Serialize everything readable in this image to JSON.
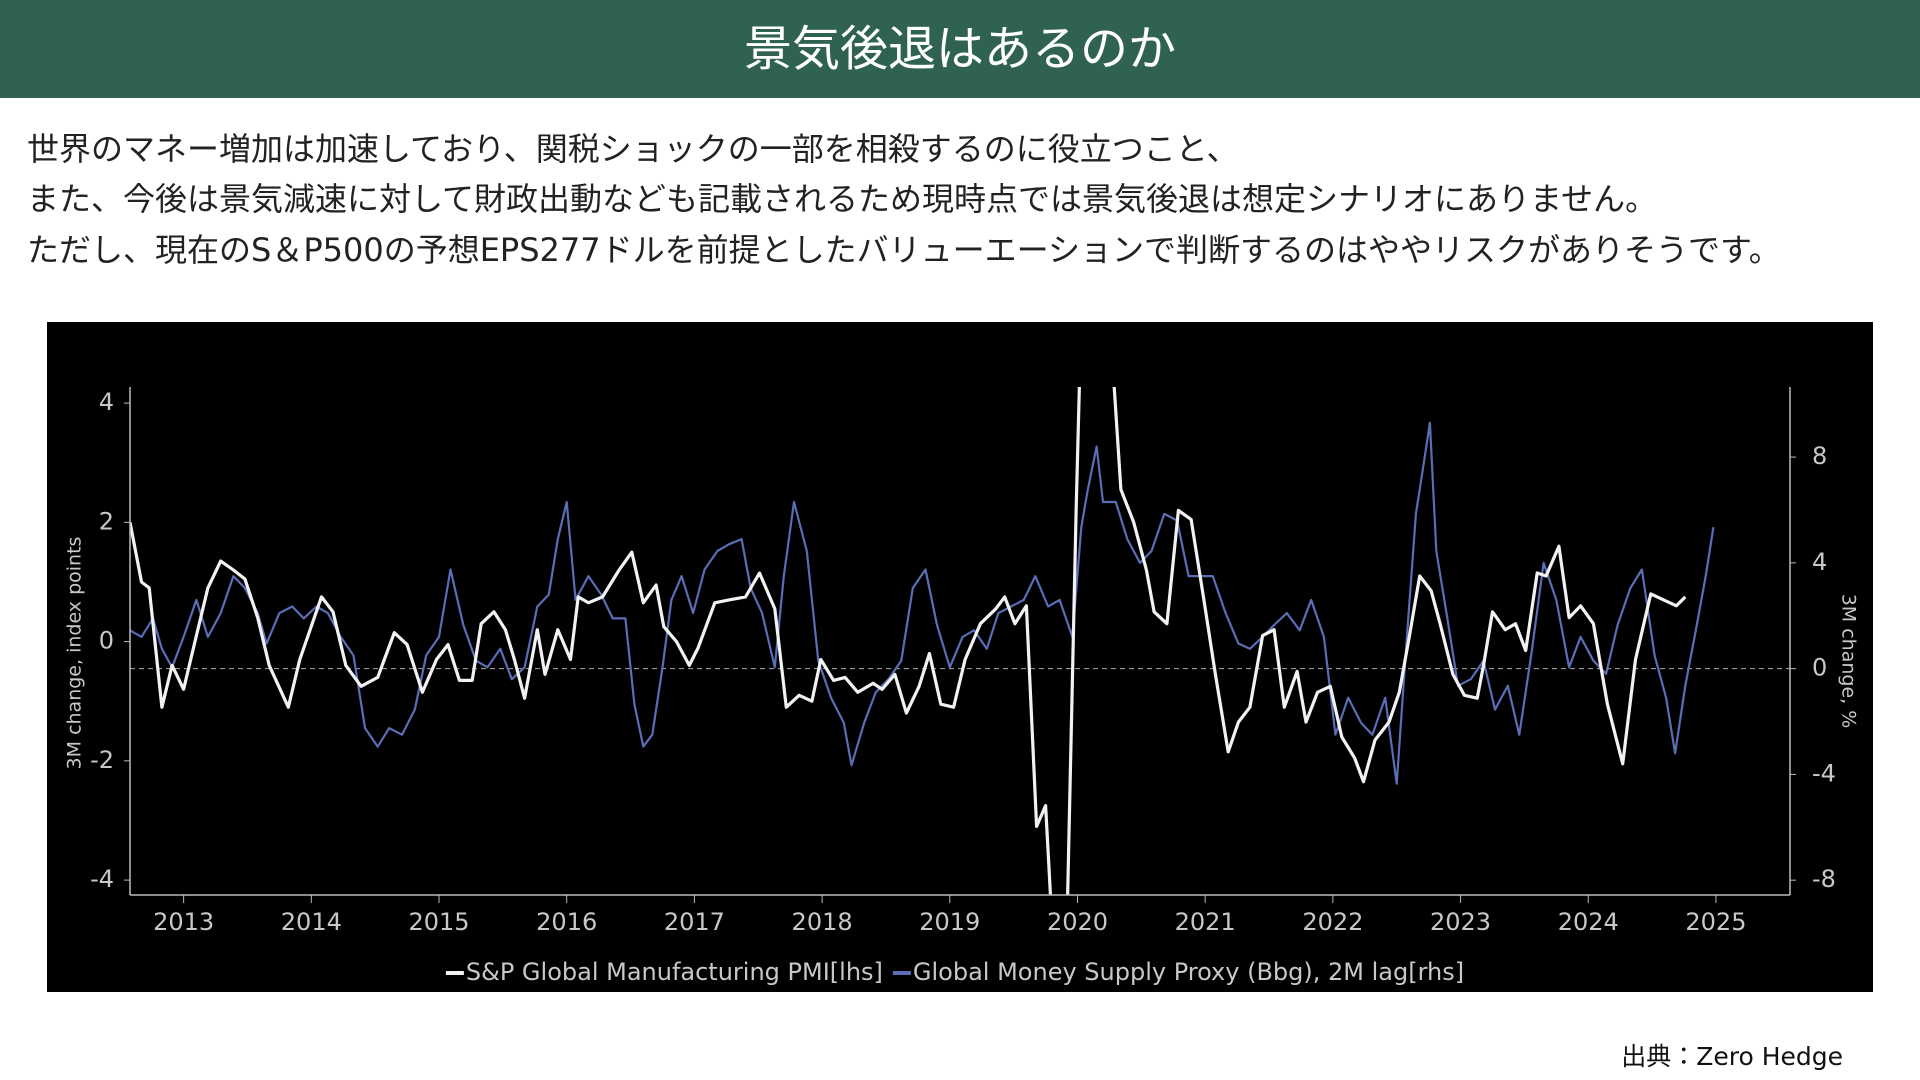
{
  "header": {
    "title": "景気後退はあるのか"
  },
  "body": {
    "lines": [
      "世界のマネー増加は加速しており、関税ショックの一部を相殺するのに役立つこと、",
      "また、今後は景気減速に対して財政出動なども記載されるため現時点では景気後退は想定シナリオにありません。",
      "ただし、現在のS＆P500の予想EPS277ドルを前提としたバリューエーションで判断するのはややリスクがありそうです。"
    ]
  },
  "source": "出典：Zero Hedge",
  "chart_data": {
    "type": "line",
    "ylabel": "3M change, index points",
    "y2label": "3M change, %",
    "xlim": [
      2013.08,
      2026.08
    ],
    "xticks": [
      {
        "value": 2013.5,
        "label": "2013"
      },
      {
        "value": 2014.5,
        "label": "2014"
      },
      {
        "value": 2015.5,
        "label": "2015"
      },
      {
        "value": 2016.5,
        "label": "2016"
      },
      {
        "value": 2017.5,
        "label": "2017"
      },
      {
        "value": 2018.5,
        "label": "2018"
      },
      {
        "value": 2019.5,
        "label": "2019"
      },
      {
        "value": 2020.5,
        "label": "2020"
      },
      {
        "value": 2021.5,
        "label": "2021"
      },
      {
        "value": 2022.5,
        "label": "2022"
      },
      {
        "value": 2023.5,
        "label": "2023"
      },
      {
        "value": 2024.5,
        "label": "2024"
      },
      {
        "value": 2025.5,
        "label": "2025"
      }
    ],
    "ylim": [
      -4.25,
      4.27
    ],
    "yticks": [
      -4,
      -2,
      0,
      2,
      4
    ],
    "y2lim": [
      -8.56,
      10.65
    ],
    "y2ticks": [
      -8,
      -4,
      0,
      4,
      8
    ],
    "zeroline_axis": "y2",
    "legend": "bottom",
    "background": "#000000",
    "series": [
      {
        "name": "S&P Global Manufacturing PMI[lhs]",
        "color": "#f2f2f2",
        "x": [
          2013.08,
          2013.17,
          2013.23,
          2013.33,
          2013.41,
          2013.5,
          2013.6,
          2013.69,
          2013.79,
          2013.89,
          2013.98,
          2014.08,
          2014.17,
          2014.32,
          2014.41,
          2014.58,
          2014.67,
          2014.77,
          2014.89,
          2015.02,
          2015.15,
          2015.25,
          2015.37,
          2015.48,
          2015.57,
          2015.66,
          2015.76,
          2015.83,
          2015.93,
          2016.02,
          2016.09,
          2016.17,
          2016.27,
          2016.33,
          2016.43,
          2016.53,
          2016.59,
          2016.67,
          2016.78,
          2016.91,
          2017.01,
          2017.1,
          2017.2,
          2017.26,
          2017.36,
          2017.46,
          2017.53,
          2017.66,
          2017.77,
          2017.9,
          2018.01,
          2018.13,
          2018.22,
          2018.32,
          2018.42,
          2018.49,
          2018.59,
          2018.68,
          2018.78,
          2018.9,
          2018.97,
          2019.07,
          2019.16,
          2019.26,
          2019.34,
          2019.43,
          2019.53,
          2019.62,
          2019.74,
          2019.86,
          2019.93,
          2020.01,
          2020.1,
          2020.18,
          2020.25,
          2020.32,
          2020.41,
          2020.49,
          2020.53,
          2020.75,
          2020.84,
          2020.94,
          2021.04,
          2021.1,
          2021.2,
          2021.29,
          2021.39,
          2021.49,
          2021.58,
          2021.68,
          2021.76,
          2021.85,
          2021.95,
          2022.04,
          2022.12,
          2022.22,
          2022.29,
          2022.38,
          2022.48,
          2022.57,
          2022.67,
          2022.74,
          2022.83,
          2022.94,
          2023.02,
          2023.1,
          2023.18,
          2023.27,
          2023.34,
          2023.44,
          2023.53,
          2023.63,
          2023.68,
          2023.75,
          2023.85,
          2023.93,
          2024.01,
          2024.1,
          2024.17,
          2024.27,
          2024.35,
          2024.44,
          2024.54,
          2024.65,
          2024.77,
          2024.87,
          2024.99,
          2025.09,
          2025.19,
          2025.26
        ],
        "values": [
          2.0,
          1.0,
          0.9,
          -1.1,
          -0.4,
          -0.8,
          0.1,
          0.9,
          1.35,
          1.2,
          1.05,
          0.4,
          -0.4,
          -1.1,
          -0.3,
          0.75,
          0.5,
          -0.4,
          -0.75,
          -0.6,
          0.15,
          -0.05,
          -0.85,
          -0.3,
          -0.05,
          -0.65,
          -0.65,
          0.3,
          0.5,
          0.2,
          -0.3,
          -0.95,
          0.2,
          -0.55,
          0.2,
          -0.3,
          0.75,
          0.65,
          0.75,
          1.2,
          1.5,
          0.65,
          0.95,
          0.25,
          0,
          -0.4,
          -0.1,
          0.65,
          0.7,
          0.75,
          1.15,
          0.55,
          -1.1,
          -0.9,
          -1.0,
          -0.3,
          -0.65,
          -0.6,
          -0.85,
          -0.7,
          -0.8,
          -0.55,
          -1.2,
          -0.75,
          -0.2,
          -1.05,
          -1.1,
          -0.3,
          0.3,
          0.55,
          0.75,
          0.3,
          0.6,
          -3.1,
          -2.75,
          -5.5,
          -5.5,
          2.25,
          5.5,
          5.5,
          2.55,
          2.0,
          1.2,
          0.5,
          0.3,
          2.2,
          2.05,
          0.7,
          -0.55,
          -1.85,
          -1.35,
          -1.1,
          0.1,
          0.2,
          -1.1,
          -0.5,
          -1.35,
          -0.85,
          -0.75,
          -1.6,
          -1.95,
          -2.35,
          -1.65,
          -1.35,
          -0.85,
          0.1,
          1.1,
          0.85,
          0.3,
          -0.55,
          -0.9,
          -0.95,
          -0.4,
          0.5,
          0.2,
          0.3,
          -0.15,
          1.15,
          1.1,
          1.6,
          0.4,
          0.6,
          0.3,
          -1.05,
          -2.05,
          -0.3,
          0.8,
          0.7,
          0.6,
          0.75
        ]
      },
      {
        "name": "Global Money Supply Proxy (Bbg), 2M lag[rhs]",
        "color": "#5a6db5",
        "axis": "y2",
        "x": [
          2013.08,
          2013.17,
          2013.26,
          2013.33,
          2013.41,
          2013.5,
          2013.6,
          2013.69,
          2013.79,
          2013.89,
          2013.98,
          2014.08,
          2014.15,
          2014.25,
          2014.35,
          2014.44,
          2014.54,
          2014.63,
          2014.73,
          2014.83,
          2014.92,
          2015.02,
          2015.11,
          2015.21,
          2015.31,
          2015.4,
          2015.5,
          2015.59,
          2015.69,
          2015.79,
          2015.88,
          2015.98,
          2016.07,
          2016.17,
          2016.27,
          2016.36,
          2016.43,
          2016.5,
          2016.57,
          2016.67,
          2016.77,
          2016.86,
          2016.96,
          2017.03,
          2017.1,
          2017.17,
          2017.25,
          2017.32,
          2017.4,
          2017.49,
          2017.58,
          2017.68,
          2017.77,
          2017.87,
          2017.94,
          2018.03,
          2018.13,
          2018.2,
          2018.28,
          2018.38,
          2018.47,
          2018.57,
          2018.67,
          2018.73,
          2018.83,
          2018.92,
          2019.02,
          2019.12,
          2019.21,
          2019.31,
          2019.4,
          2019.5,
          2019.6,
          2019.69,
          2019.79,
          2019.88,
          2019.98,
          2020.08,
          2020.17,
          2020.27,
          2020.36,
          2020.46,
          2020.53,
          2020.58,
          2020.65,
          2020.7,
          2020.8,
          2020.89,
          2020.99,
          2021.08,
          2021.18,
          2021.28,
          2021.37,
          2021.47,
          2021.56,
          2021.66,
          2021.76,
          2021.85,
          2021.95,
          2022.04,
          2022.14,
          2022.24,
          2022.33,
          2022.43,
          2022.52,
          2022.62,
          2022.72,
          2022.81,
          2022.91,
          2023.0,
          2023.08,
          2023.15,
          2023.21,
          2023.26,
          2023.31,
          2023.39,
          2023.48,
          2023.58,
          2023.68,
          2023.77,
          2023.87,
          2023.96,
          2024.06,
          2024.15,
          2024.25,
          2024.35,
          2024.44,
          2024.54,
          2024.64,
          2024.73,
          2024.83,
          2024.92,
          2025.02,
          2025.11,
          2025.18,
          2025.26,
          2025.35,
          2025.42,
          2025.48
        ],
        "values": [
          1.45,
          1.2,
          1.9,
          0.75,
          0.05,
          1.2,
          2.6,
          1.2,
          2.1,
          3.5,
          3.05,
          2.1,
          0.95,
          2.1,
          2.35,
          1.9,
          2.35,
          2.1,
          1.2,
          0.5,
          -2.25,
          -2.95,
          -2.25,
          -2.5,
          -1.55,
          0.5,
          1.2,
          3.75,
          1.65,
          0.3,
          0.05,
          0.75,
          -0.4,
          0.05,
          2.35,
          2.8,
          4.9,
          6.3,
          2.6,
          3.5,
          2.8,
          1.9,
          1.9,
          -1.35,
          -2.95,
          -2.5,
          0.05,
          2.6,
          3.5,
          2.1,
          3.75,
          4.45,
          4.7,
          4.9,
          3.05,
          2.1,
          0.05,
          3.5,
          6.3,
          4.45,
          0.3,
          -1.1,
          -2.05,
          -3.65,
          -2.05,
          -0.9,
          -0.4,
          0.3,
          3.05,
          3.75,
          1.65,
          0.05,
          1.2,
          1.45,
          0.75,
          2.1,
          2.35,
          2.6,
          3.5,
          2.35,
          2.6,
          1.2,
          5.35,
          6.75,
          8.4,
          6.3,
          6.3,
          4.9,
          4.0,
          4.45,
          5.85,
          5.6,
          3.5,
          3.5,
          3.5,
          2.1,
          0.95,
          0.75,
          1.2,
          1.65,
          2.1,
          1.45,
          2.6,
          1.2,
          -2.5,
          -1.1,
          -2.05,
          -2.5,
          -1.1,
          -4.35,
          1.2,
          5.85,
          7.7,
          9.3,
          4.45,
          2.1,
          -0.65,
          -0.4,
          0.3,
          -1.55,
          -0.65,
          -2.5,
          0.75,
          4.0,
          2.6,
          0.05,
          1.2,
          0.3,
          -0.2,
          1.65,
          3.05,
          3.75,
          0.5,
          -1.1,
          -3.2,
          -0.65,
          1.65,
          3.5,
          5.35
        ]
      }
    ]
  }
}
